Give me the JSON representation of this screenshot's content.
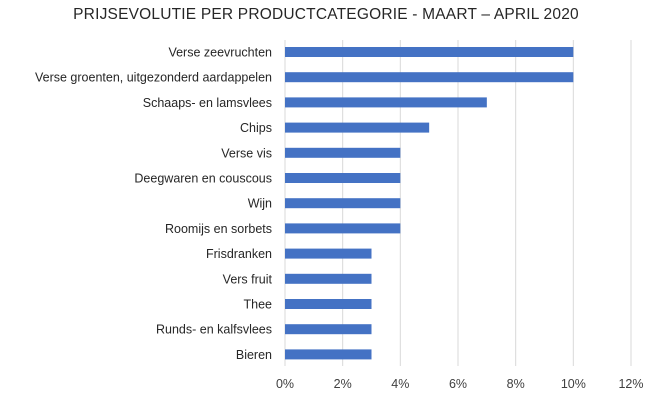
{
  "chart_data": {
    "type": "bar",
    "orientation": "horizontal",
    "title": "PRIJSEVOLUTIE PER PRODUCTCATEGORIE - MAART – APRIL 2020",
    "categories": [
      "Verse zeevruchten",
      "Verse groenten, uitgezonderd aardappelen",
      "Schaaps- en lamsvlees",
      "Chips",
      "Verse vis",
      "Deegwaren en couscous",
      "Wijn",
      "Roomijs en sorbets",
      "Frisdranken",
      "Vers fruit",
      "Thee",
      "Runds- en kalfsvlees",
      "Bieren"
    ],
    "values": [
      10,
      10,
      7,
      5,
      4,
      4,
      4,
      4,
      3,
      3,
      3,
      3,
      3
    ],
    "xlim": [
      0,
      12
    ],
    "xticks": [
      "0%",
      "2%",
      "4%",
      "6%",
      "8%",
      "10%",
      "12%"
    ],
    "grid": "vertical",
    "bar_color": "#4472c4",
    "grid_color": "#d9d9d9"
  }
}
